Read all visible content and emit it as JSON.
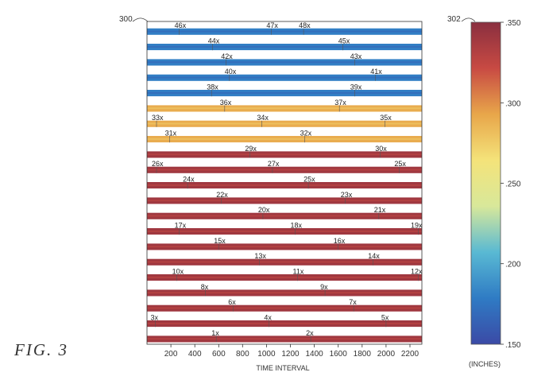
{
  "figure": {
    "label": "FIG. 3",
    "plot_ref": "300",
    "colorbar_ref": "302"
  },
  "chart_data": {
    "type": "heatmap",
    "xlabel": "TIME INTERVAL",
    "xlim": [
      0,
      2300
    ],
    "xticks": [
      200,
      400,
      600,
      800,
      1000,
      1200,
      1400,
      1600,
      1800,
      2000,
      2200
    ],
    "colorbar": {
      "min": 0.15,
      "max": 0.35,
      "ticks": [
        ".350",
        ".300",
        ".250",
        ".200",
        ".150"
      ],
      "tick_values": [
        0.35,
        0.3,
        0.25,
        0.2,
        0.15
      ],
      "label": "(INCHES)",
      "colors": [
        "#3b4aa6",
        "#2f7bc4",
        "#59b9d3",
        "#d8e89a",
        "#f4e37a",
        "#e8a64a",
        "#c84a43",
        "#8a2f3f"
      ]
    },
    "bands": [
      {
        "labels": [
          {
            "text": "46x",
            "x": 230
          },
          {
            "text": "47x",
            "x": 1000
          },
          {
            "text": "48x",
            "x": 1270
          }
        ],
        "value": 0.18
      },
      {
        "labels": [
          {
            "text": "44x",
            "x": 510
          },
          {
            "text": "45x",
            "x": 1600
          }
        ],
        "value": 0.18
      },
      {
        "labels": [
          {
            "text": "42x",
            "x": 620
          },
          {
            "text": "43x",
            "x": 1700
          }
        ],
        "value": 0.18
      },
      {
        "labels": [
          {
            "text": "40x",
            "x": 650
          },
          {
            "text": "41x",
            "x": 1870
          }
        ],
        "value": 0.18
      },
      {
        "labels": [
          {
            "text": "38x",
            "x": 500
          },
          {
            "text": "39x",
            "x": 1700
          }
        ],
        "value": 0.18
      },
      {
        "labels": [
          {
            "text": "36x",
            "x": 610
          },
          {
            "text": "37x",
            "x": 1570
          }
        ],
        "value": 0.29
      },
      {
        "labels": [
          {
            "text": "33x",
            "x": 40
          },
          {
            "text": "34x",
            "x": 920
          },
          {
            "text": "35x",
            "x": 1950
          }
        ],
        "value": 0.29
      },
      {
        "labels": [
          {
            "text": "31x",
            "x": 150
          },
          {
            "text": "32x",
            "x": 1280
          }
        ],
        "value": 0.29
      },
      {
        "labels": [
          {
            "text": "29x",
            "x": 820
          },
          {
            "text": "30x",
            "x": 1910
          }
        ],
        "value": 0.34
      },
      {
        "labels": [
          {
            "text": "26x",
            "x": 40
          },
          {
            "text": "27x",
            "x": 1010
          },
          {
            "text": "25x",
            "x": 2070
          }
        ],
        "value": 0.34
      },
      {
        "labels": [
          {
            "text": "24x",
            "x": 300
          },
          {
            "text": "25x",
            "x": 1310
          }
        ],
        "value": 0.34
      },
      {
        "labels": [
          {
            "text": "22x",
            "x": 580
          },
          {
            "text": "23x",
            "x": 1620
          }
        ],
        "value": 0.34
      },
      {
        "labels": [
          {
            "text": "20x",
            "x": 930
          },
          {
            "text": "21x",
            "x": 1900
          }
        ],
        "value": 0.34
      },
      {
        "labels": [
          {
            "text": "17x",
            "x": 230
          },
          {
            "text": "18x",
            "x": 1200
          },
          {
            "text": "19x",
            "x": 2230
          }
        ],
        "value": 0.34
      },
      {
        "labels": [
          {
            "text": "15x",
            "x": 560
          },
          {
            "text": "16x",
            "x": 1560
          }
        ],
        "value": 0.34
      },
      {
        "labels": [
          {
            "text": "13x",
            "x": 900
          },
          {
            "text": "14x",
            "x": 1850
          }
        ],
        "value": 0.34
      },
      {
        "labels": [
          {
            "text": "10x",
            "x": 210
          },
          {
            "text": "11x",
            "x": 1220
          },
          {
            "text": "12x",
            "x": 2230
          }
        ],
        "value": 0.34
      },
      {
        "labels": [
          {
            "text": "8x",
            "x": 450
          },
          {
            "text": "9x",
            "x": 1450
          }
        ],
        "value": 0.34
      },
      {
        "labels": [
          {
            "text": "6x",
            "x": 680
          },
          {
            "text": "7x",
            "x": 1690
          }
        ],
        "value": 0.34
      },
      {
        "labels": [
          {
            "text": "3x",
            "x": 30
          },
          {
            "text": "4x",
            "x": 980
          },
          {
            "text": "5x",
            "x": 1960
          }
        ],
        "value": 0.34
      },
      {
        "labels": [
          {
            "text": "1x",
            "x": 540
          },
          {
            "text": "2x",
            "x": 1330
          }
        ],
        "value": 0.34
      }
    ]
  }
}
